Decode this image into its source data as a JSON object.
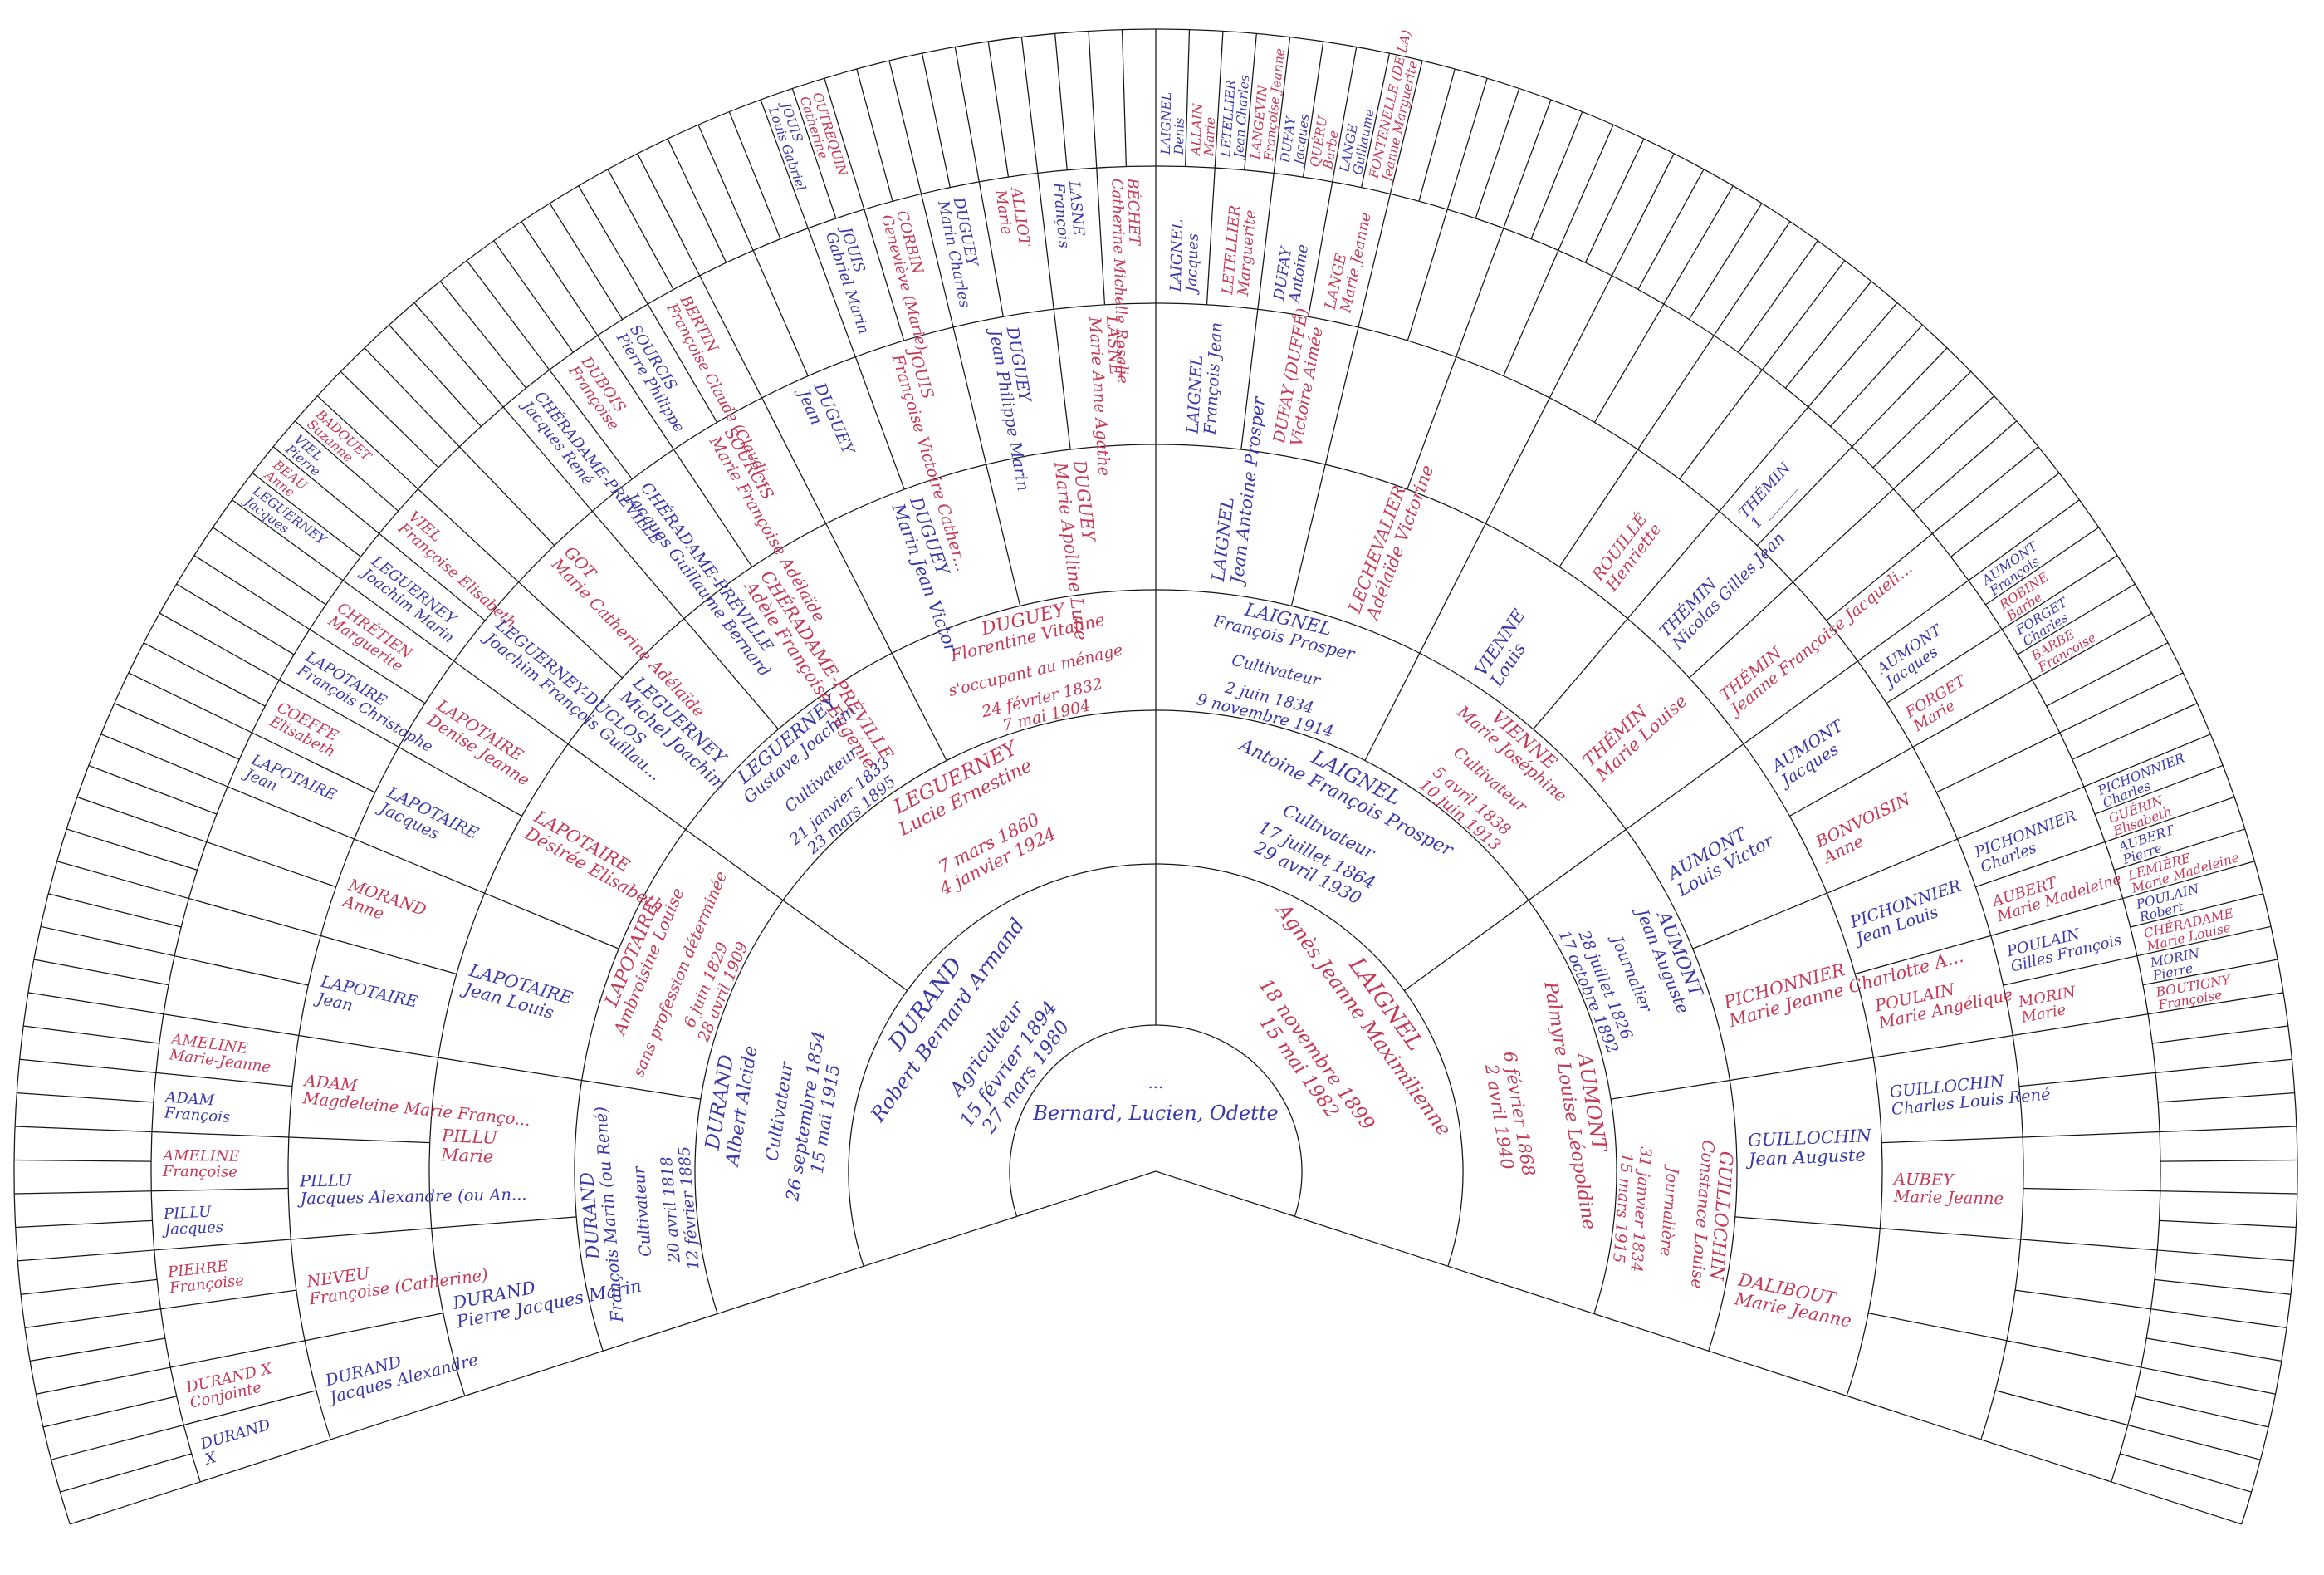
{
  "chart": {
    "type": "genealogy-fan",
    "angle_start": -18,
    "angle_end": 198,
    "ring_boundaries": [
      0,
      176,
      370,
      555,
      700,
      875,
      1045,
      1210,
      1375
    ],
    "colors": {
      "male": "#3939a6",
      "female": "#c23a55",
      "grid": "#161616",
      "background": "#ffffff"
    },
    "center": {
      "sosa": 1,
      "sex": "m",
      "lines": [
        "...",
        "Bernard, Lucien, Odette"
      ]
    },
    "people": [
      {
        "n": 2,
        "s": "m",
        "name": "DURAND",
        "given": "Robert Bernard Armand",
        "occ": "Agriculteur",
        "b": "15 février 1894",
        "d": "27 mars 1980"
      },
      {
        "n": 3,
        "s": "f",
        "name": "LAIGNEL",
        "given": "Agnès Jeanne Maximilienne",
        "b": "18 novembre 1899",
        "d": "15 mai 1982"
      },
      {
        "n": 4,
        "s": "m",
        "name": "DURAND",
        "given": "Albert Alcide",
        "occ": "Cultivateur",
        "b": "26 septembre 1854",
        "d": "15 mai 1915"
      },
      {
        "n": 5,
        "s": "f",
        "name": "LEGUERNEY",
        "given": "Lucie Ernestine",
        "b": "7 mars 1860",
        "d": "4 janvier 1924"
      },
      {
        "n": 6,
        "s": "m",
        "name": "LAIGNEL",
        "given": "Antoine François Prosper",
        "occ": "Cultivateur",
        "b": "17 juillet 1864",
        "d": "29 avril 1930"
      },
      {
        "n": 7,
        "s": "f",
        "name": "AUMONT",
        "given": "Palmyre Louise Léopoldine",
        "b": "6 février 1868",
        "d": "2 avril 1940"
      },
      {
        "n": 8,
        "s": "m",
        "name": "DURAND",
        "given": "François Marin (ou René)",
        "occ": "Cultivateur",
        "b": "20 avril 1818",
        "d": "12 février 1885"
      },
      {
        "n": 9,
        "s": "f",
        "name": "LAPOTAIRE",
        "given": "Ambroisine Louise",
        "occ": "sans profession déterminée",
        "b": "6 juin 1829",
        "d": "28 avril 1909"
      },
      {
        "n": 10,
        "s": "m",
        "name": "LEGUERNEY",
        "given": "Gustave Joachim",
        "occ": "Cultivateur",
        "b": "21 janvier 1833",
        "d": "23 mars 1895"
      },
      {
        "n": 11,
        "s": "f",
        "name": "DUGUEY",
        "given": "Florentine Vitaline",
        "occ": "s'occupant au ménage",
        "b": "24 février 1832",
        "d": "7 mai 1904"
      },
      {
        "n": 12,
        "s": "m",
        "name": "LAIGNEL",
        "given": "François Prosper",
        "occ": "Cultivateur",
        "b": "2 juin 1834",
        "d": "9 novembre 1914"
      },
      {
        "n": 13,
        "s": "f",
        "name": "VIENNE",
        "given": "Marie Joséphine",
        "occ": "Cultivateur",
        "b": "5 avril 1838",
        "d": "10 juin 1913"
      },
      {
        "n": 14,
        "s": "m",
        "name": "AUMONT",
        "given": "Jean Auguste",
        "occ": "Journalier",
        "b": "28 juillet 1826",
        "d": "17 octobre 1892"
      },
      {
        "n": 15,
        "s": "f",
        "name": "GUILLOCHIN",
        "given": "Constance Louise",
        "occ": "Journalière",
        "b": "31 janvier 1834",
        "d": "15 mars 1915"
      },
      {
        "n": 16,
        "s": "m",
        "name": "DURAND",
        "given": "Pierre Jacques Marin"
      },
      {
        "n": 17,
        "s": "f",
        "name": "PILLU",
        "given": "Marie"
      },
      {
        "n": 18,
        "s": "m",
        "name": "LAPOTAIRE",
        "given": "Jean Louis"
      },
      {
        "n": 19,
        "s": "f",
        "name": "LAPOTAIRE",
        "given": "Désirée Elisabeth"
      },
      {
        "n": 20,
        "s": "m",
        "name": "LEGUERNEY",
        "given": "Michel Joachim"
      },
      {
        "n": 21,
        "s": "f",
        "name": "CHÉRADAME-PRÉVILLE",
        "given": "Adèle Françoise Eugénie"
      },
      {
        "n": 22,
        "s": "m",
        "name": "DUGUEY",
        "given": "Marin Jean Victor"
      },
      {
        "n": 23,
        "s": "f",
        "name": "DUGUEY",
        "given": "Marie Apolline Luce"
      },
      {
        "n": 24,
        "s": "m",
        "name": "LAIGNEL",
        "given": "Jean Antoine Prosper"
      },
      {
        "n": 25,
        "s": "f",
        "name": "LECHEVALIER",
        "given": "Adélaïde Victorine"
      },
      {
        "n": 26,
        "s": "m",
        "name": "VIENNE",
        "given": "Louis"
      },
      {
        "n": 27,
        "s": "f",
        "name": "THÉMIN",
        "given": "Marie Louise"
      },
      {
        "n": 28,
        "s": "m",
        "name": "AUMONT",
        "given": "Louis Victor"
      },
      {
        "n": 29,
        "s": "f",
        "name": "PICHONNIER",
        "given": "Marie Jeanne Charlotte A..."
      },
      {
        "n": 30,
        "s": "m",
        "name": "GUILLOCHIN",
        "given": "Jean Auguste"
      },
      {
        "n": 31,
        "s": "f",
        "name": "DALIBOUT",
        "given": "Marie Jeanne"
      },
      {
        "n": 32,
        "s": "m",
        "name": "DURAND",
        "given": "Jacques Alexandre"
      },
      {
        "n": 33,
        "s": "f",
        "name": "NEVEU",
        "given": "Françoise (Catherine)"
      },
      {
        "n": 34,
        "s": "m",
        "name": "PILLU",
        "given": "Jacques Alexandre (ou An..."
      },
      {
        "n": 35,
        "s": "f",
        "name": "ADAM",
        "given": "Magdeleine Marie Franço..."
      },
      {
        "n": 36,
        "s": "m",
        "name": "LAPOTAIRE",
        "given": "Jean"
      },
      {
        "n": 37,
        "s": "f",
        "name": "MORAND",
        "given": "Anne"
      },
      {
        "n": 38,
        "s": "m",
        "name": "LAPOTAIRE",
        "given": "Jacques"
      },
      {
        "n": 39,
        "s": "f",
        "name": "LAPOTAIRE",
        "given": "Denise Jeanne"
      },
      {
        "n": 40,
        "s": "m",
        "name": "LEGUERNEY-DUCLOS",
        "given": "Joachim François Guillau..."
      },
      {
        "n": 41,
        "s": "f",
        "name": "GOT",
        "given": "Marie Catherine Adélaïde"
      },
      {
        "n": 42,
        "s": "m",
        "name": "CHÉRADAME-PRÉVILLE",
        "given": "Jacques Guillaume Bernard"
      },
      {
        "n": 43,
        "s": "f",
        "name": "SOURCIS",
        "given": "Marie Françoise Adélaïde"
      },
      {
        "n": 44,
        "s": "m",
        "name": "DUGUEY",
        "given": "Jean"
      },
      {
        "n": 45,
        "s": "f",
        "name": "JOUIS",
        "given": "Françoise Victoire Cather..."
      },
      {
        "n": 46,
        "s": "m",
        "name": "DUGUEY",
        "given": "Jean Philippe Marin"
      },
      {
        "n": 47,
        "s": "f",
        "name": "LASNE",
        "given": "Marie Anne Agathe"
      },
      {
        "n": 48,
        "s": "m",
        "name": "LAIGNEL",
        "given": "François Jean"
      },
      {
        "n": 49,
        "s": "f",
        "name": "DUFAY (DUFFÉ)",
        "given": "Victoire Aimée"
      },
      {
        "n": 53,
        "s": "f",
        "name": "ROUILLÉ",
        "given": "Henriette"
      },
      {
        "n": 54,
        "s": "m",
        "name": "THÉMIN",
        "given": "Nicolas Gilles Jean"
      },
      {
        "n": 55,
        "s": "f",
        "name": "THÉMIN",
        "given": "Jeanne Françoise Jacqueli..."
      },
      {
        "n": 56,
        "s": "m",
        "name": "AUMONT",
        "given": "Jacques"
      },
      {
        "n": 57,
        "s": "f",
        "name": "BONVOISIN",
        "given": "Anne"
      },
      {
        "n": 58,
        "s": "m",
        "name": "PICHONNIER",
        "given": "Jean Louis"
      },
      {
        "n": 59,
        "s": "f",
        "name": "POULAIN",
        "given": "Marie Angélique"
      },
      {
        "n": 60,
        "s": "m",
        "name": "GUILLOCHIN",
        "given": "Charles Louis René"
      },
      {
        "n": 61,
        "s": "f",
        "name": "AUBEY",
        "given": "Marie Jeanne"
      },
      {
        "n": 64,
        "s": "m",
        "name": "DURAND",
        "given": "X"
      },
      {
        "n": 65,
        "s": "f",
        "name": "DURAND X",
        "given": "Conjointe"
      },
      {
        "n": 67,
        "s": "f",
        "name": "PIERRE",
        "given": "Françoise"
      },
      {
        "n": 68,
        "s": "m",
        "name": "PILLU",
        "given": "Jacques"
      },
      {
        "n": 69,
        "s": "f",
        "name": "AMELINE",
        "given": "Françoise"
      },
      {
        "n": 70,
        "s": "m",
        "name": "ADAM",
        "given": "François"
      },
      {
        "n": 71,
        "s": "f",
        "name": "AMELINE",
        "given": "Marie-Jeanne"
      },
      {
        "n": 76,
        "s": "m",
        "name": "LAPOTAIRE",
        "given": "Jean"
      },
      {
        "n": 77,
        "s": "f",
        "name": "COEFFE",
        "given": "Elisabeth"
      },
      {
        "n": 78,
        "s": "m",
        "name": "LAPOTAIRE",
        "given": "François Christophe"
      },
      {
        "n": 79,
        "s": "f",
        "name": "CHRÉTIEN",
        "given": "Marguerite"
      },
      {
        "n": 80,
        "s": "m",
        "name": "LEGUERNEY",
        "given": "Joachim Marin"
      },
      {
        "n": 81,
        "s": "f",
        "name": "VIEL",
        "given": "Françoise Elisabeth"
      },
      {
        "n": 84,
        "s": "m",
        "name": "CHÉRADAME-PRÉVILLE",
        "given": "Jacques René"
      },
      {
        "n": 85,
        "s": "f",
        "name": "DUBOIS",
        "given": "Françoise"
      },
      {
        "n": 86,
        "s": "m",
        "name": "SOURCIS",
        "given": "Pierre Philippe"
      },
      {
        "n": 87,
        "s": "f",
        "name": "BERTIN",
        "given": "Françoise Claude (Claudi..."
      },
      {
        "n": 90,
        "s": "m",
        "name": "JOUIS",
        "given": "Gabriel Marin"
      },
      {
        "n": 91,
        "s": "f",
        "name": "CORBIN",
        "given": "Geneviève (Marie)"
      },
      {
        "n": 92,
        "s": "m",
        "name": "DUGUEY",
        "given": "Marin Charles"
      },
      {
        "n": 93,
        "s": "f",
        "name": "ALLIOT",
        "given": "Marie"
      },
      {
        "n": 94,
        "s": "m",
        "name": "LASNE",
        "given": "François"
      },
      {
        "n": 95,
        "s": "f",
        "name": "BÉCHET",
        "given": "Catherine Michelle Rosalie"
      },
      {
        "n": 96,
        "s": "m",
        "name": "LAIGNEL",
        "given": "Jacques"
      },
      {
        "n": 97,
        "s": "f",
        "name": "LETELLIER",
        "given": "Marguerite"
      },
      {
        "n": 98,
        "s": "m",
        "name": "DUFAY",
        "given": "Antoine"
      },
      {
        "n": 99,
        "s": "f",
        "name": "LANGE",
        "given": "Marie Jeanne"
      },
      {
        "n": 108,
        "s": "m",
        "name": "THÉMIN",
        "given": "1 ______"
      },
      {
        "n": 112,
        "s": "m",
        "name": "AUMONT",
        "given": "Jacques"
      },
      {
        "n": 113,
        "s": "f",
        "name": "FORGET",
        "given": "Marie"
      },
      {
        "n": 116,
        "s": "m",
        "name": "PICHONNIER",
        "given": "Charles"
      },
      {
        "n": 117,
        "s": "f",
        "name": "AUBERT",
        "given": "Marie Madeleine"
      },
      {
        "n": 118,
        "s": "m",
        "name": "POULAIN",
        "given": "Gilles François"
      },
      {
        "n": 119,
        "s": "f",
        "name": "MORIN",
        "given": "Marie"
      },
      {
        "n": 160,
        "s": "m",
        "name": "LEGUERNEY",
        "given": "Jacques"
      },
      {
        "n": 161,
        "s": "f",
        "name": "BEAU",
        "given": "Anne"
      },
      {
        "n": 162,
        "s": "m",
        "name": "VIEL",
        "given": "Pierre"
      },
      {
        "n": 163,
        "s": "f",
        "name": "BADOUET",
        "given": "Suzanne"
      },
      {
        "n": 180,
        "s": "m",
        "name": "JOUIS",
        "given": "Louis Gabriel"
      },
      {
        "n": 181,
        "s": "f",
        "name": "OUTREQUIN",
        "given": "Catherine"
      },
      {
        "n": 192,
        "s": "m",
        "name": "LAIGNEL",
        "given": "Denis"
      },
      {
        "n": 193,
        "s": "f",
        "name": "ALLAIN",
        "given": "Marie"
      },
      {
        "n": 194,
        "s": "m",
        "name": "LETELLIER",
        "given": "Jean Charles"
      },
      {
        "n": 195,
        "s": "f",
        "name": "LANGEVIN",
        "given": "Françoise Jeanne"
      },
      {
        "n": 196,
        "s": "m",
        "name": "DUFAY",
        "given": "Jacques"
      },
      {
        "n": 197,
        "s": "f",
        "name": "QUÉRU",
        "given": "Barbe"
      },
      {
        "n": 198,
        "s": "m",
        "name": "LANGE",
        "given": "Guillaume"
      },
      {
        "n": 199,
        "s": "f",
        "name": "FONTENELLE (DE LA)",
        "given": "Jeanne Marguerite"
      },
      {
        "n": 224,
        "s": "m",
        "name": "AUMONT",
        "given": "François"
      },
      {
        "n": 225,
        "s": "f",
        "name": "ROBINE",
        "given": "Barbe"
      },
      {
        "n": 226,
        "s": "m",
        "name": "FORGET",
        "given": "Charles"
      },
      {
        "n": 227,
        "s": "f",
        "name": "BARBE",
        "given": "Françoise"
      },
      {
        "n": 232,
        "s": "m",
        "name": "PICHONNIER",
        "given": "Charles"
      },
      {
        "n": 233,
        "s": "f",
        "name": "GUÉRIN",
        "given": "Elisabeth"
      },
      {
        "n": 234,
        "s": "m",
        "name": "AUBERT",
        "given": "Pierre"
      },
      {
        "n": 235,
        "s": "f",
        "name": "LEMIÈRE",
        "given": "Marie Madeleine"
      },
      {
        "n": 236,
        "s": "m",
        "name": "POULAIN",
        "given": "Robert"
      },
      {
        "n": 237,
        "s": "f",
        "name": "CHÉRADAME",
        "given": "Marie Louise"
      },
      {
        "n": 238,
        "s": "m",
        "name": "MORIN",
        "given": "Pierre"
      },
      {
        "n": 239,
        "s": "f",
        "name": "BOUTIGNY",
        "given": "Françoise"
      }
    ]
  }
}
